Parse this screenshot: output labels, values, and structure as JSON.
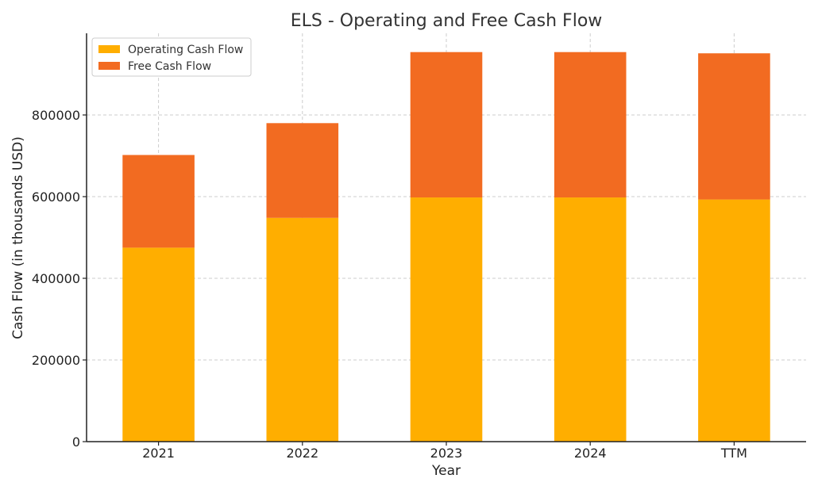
{
  "chart_data": {
    "type": "bar",
    "stacked": true,
    "title": "ELS - Operating and Free Cash Flow",
    "xlabel": "Year",
    "ylabel": "Cash Flow (in thousands USD)",
    "categories": [
      "2021",
      "2022",
      "2023",
      "2024",
      "TTM"
    ],
    "series": [
      {
        "name": "Operating Cash Flow",
        "color": "#FFAE00",
        "values": [
          475000,
          548000,
          598000,
          598000,
          593000
        ]
      },
      {
        "name": "Free Cash Flow",
        "color": "#F26B21",
        "values": [
          227000,
          232000,
          356000,
          356000,
          358000
        ]
      }
    ],
    "ylim": [
      0,
      1000000
    ],
    "yticks": [
      0,
      200000,
      400000,
      600000,
      800000
    ],
    "grid": true,
    "legend_position": "top-left"
  }
}
